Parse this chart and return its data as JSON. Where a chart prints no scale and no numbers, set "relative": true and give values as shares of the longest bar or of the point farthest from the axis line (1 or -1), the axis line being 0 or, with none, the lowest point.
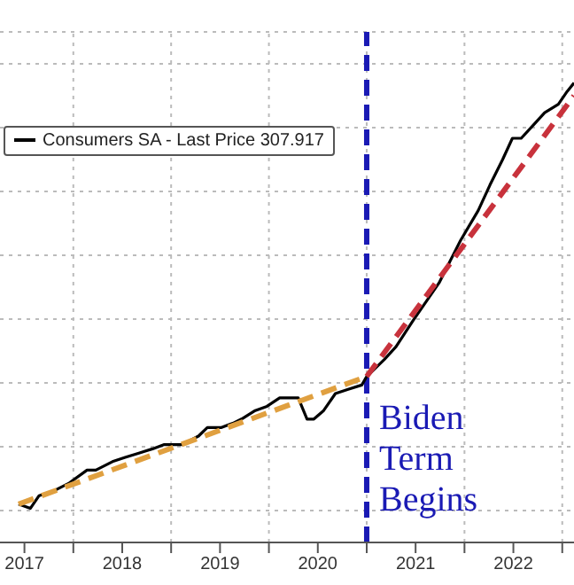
{
  "chart_data": {
    "type": "line",
    "relative": true,
    "x": [
      2017.44,
      2017.56,
      2017.65,
      2017.79,
      2017.96,
      2018.14,
      2018.23,
      2018.4,
      2018.53,
      2018.67,
      2018.81,
      2018.93,
      2019.11,
      2019.28,
      2019.37,
      2019.51,
      2019.63,
      2019.72,
      2019.86,
      2019.98,
      2020.11,
      2020.18,
      2020.3,
      2020.39,
      2020.46,
      2020.56,
      2020.68,
      2020.81,
      2020.95,
      2021.0,
      2021.18,
      2021.3,
      2021.47,
      2021.74,
      2021.96,
      2022.14,
      2022.26,
      2022.39,
      2022.49,
      2022.58,
      2022.7,
      2022.82,
      2022.96,
      2023.05,
      2023.12
    ],
    "xlim": [
      2017.25,
      2023.12
    ],
    "xticks": [
      {
        "value": 2017.5,
        "label": "2017"
      },
      {
        "value": 2018,
        "label": null
      },
      {
        "value": 2018.5,
        "label": "2018"
      },
      {
        "value": 2019,
        "label": null
      },
      {
        "value": 2019.5,
        "label": "2019"
      },
      {
        "value": 2020,
        "label": null
      },
      {
        "value": 2020.5,
        "label": "2020"
      },
      {
        "value": 2021,
        "label": null
      },
      {
        "value": 2021.5,
        "label": "2021"
      },
      {
        "value": 2022,
        "label": null
      },
      {
        "value": 2022.5,
        "label": "2022"
      },
      {
        "value": 2023,
        "label": null
      }
    ],
    "series": [
      {
        "name": "Consumers SA - Last Price 307.917",
        "color": "#000000",
        "line_style": "solid",
        "values": [
          0.01,
          0.0,
          0.03,
          0.04,
          0.06,
          0.09,
          0.09,
          0.11,
          0.12,
          0.13,
          0.14,
          0.15,
          0.15,
          0.17,
          0.19,
          0.19,
          0.2,
          0.21,
          0.23,
          0.24,
          0.26,
          0.26,
          0.26,
          0.21,
          0.21,
          0.23,
          0.27,
          0.28,
          0.29,
          0.31,
          0.35,
          0.38,
          0.44,
          0.53,
          0.63,
          0.7,
          0.76,
          0.82,
          0.87,
          0.87,
          0.9,
          0.93,
          0.95,
          0.98,
          1.0
        ]
      },
      {
        "type": "line",
        "color": "#e0a040",
        "line_style": "dashed",
        "x": [
          2017.44,
          2021.0
        ],
        "values": [
          0.01,
          0.31
        ]
      },
      {
        "type": "line",
        "color": "#c8323c",
        "line_style": "dashed",
        "x": [
          2021.0,
          2023.12
        ],
        "values": [
          0.31,
          0.97
        ]
      }
    ],
    "ref_lines": [
      {
        "axis": "x",
        "value": 2021.0,
        "label": "Biden\nTerm\nBegins",
        "color": "#1a1ab4",
        "line_style": "dashed"
      }
    ],
    "grid": true,
    "legend": "top left",
    "marker": "none"
  }
}
